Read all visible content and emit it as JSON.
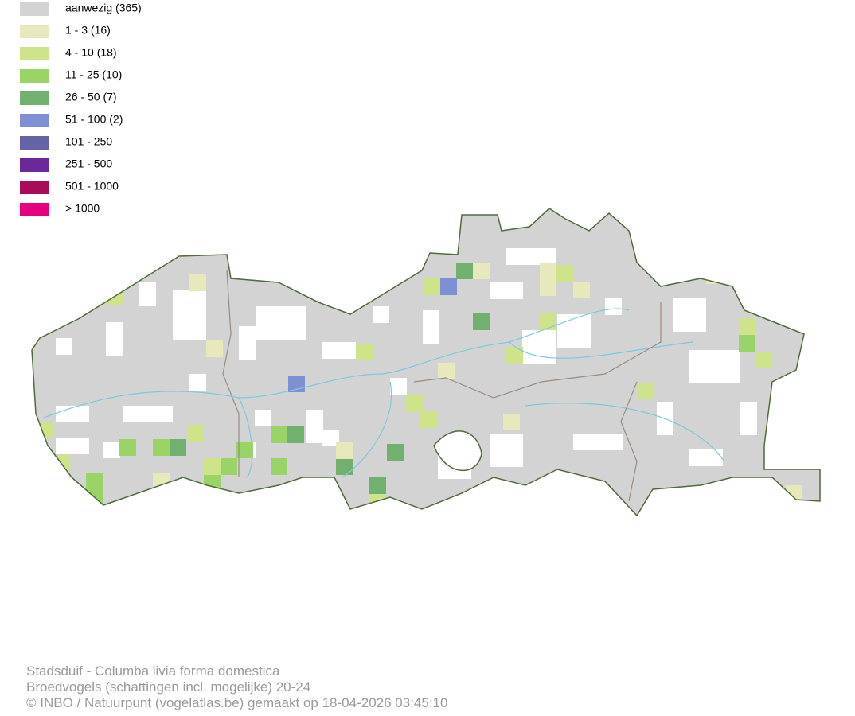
{
  "legend": {
    "items": [
      {
        "label": "aanwezig (365)",
        "color": "#d3d3d3"
      },
      {
        "label": "1 - 3 (16)",
        "color": "#e7e9bd"
      },
      {
        "label": "4 - 10 (18)",
        "color": "#cfe38a"
      },
      {
        "label": "11 - 25 (10)",
        "color": "#9bd466"
      },
      {
        "label": "26 - 50 (7)",
        "color": "#72b06f"
      },
      {
        "label": "51 - 100 (2)",
        "color": "#7e8fd3"
      },
      {
        "label": "101 - 250",
        "color": "#6563a8"
      },
      {
        "label": "251 - 500",
        "color": "#6a2898"
      },
      {
        "label": "501 - 1000",
        "color": "#a90b5b"
      },
      {
        "label": "> 1000",
        "color": "#e6007e"
      }
    ]
  },
  "footer": {
    "lines": [
      "Stadsduif - Columba livia forma domestica",
      "Broedvogels (schattingen incl. mogelijke) 20-24",
      "© INBO / Natuurpunt (vogelatlas.be) gemaakt op 18-04-2026 03:45:10"
    ]
  }
}
